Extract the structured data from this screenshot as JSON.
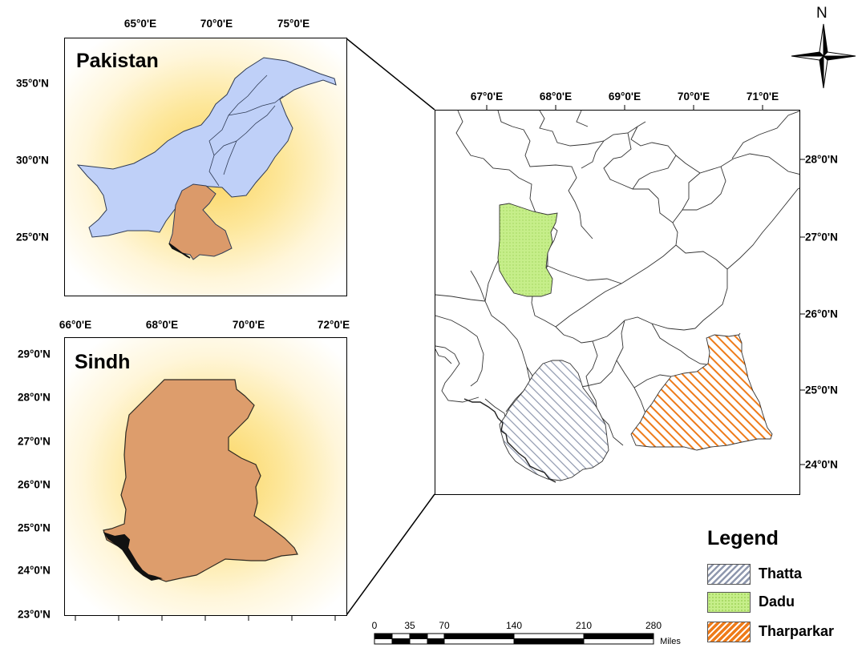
{
  "pakistan_panel": {
    "title": "Pakistan",
    "lon_ticks": [
      "65°0'E",
      "70°0'E",
      "75°0'E"
    ],
    "lat_ticks": [
      "35°0'N",
      "30°0'N",
      "25°0'N"
    ],
    "colors": {
      "country": "#bfd0f8",
      "sindh": "#db9a6a"
    }
  },
  "sindh_panel": {
    "title": "Sindh",
    "lon_ticks": [
      "66°0'E",
      "68°0'E",
      "70°0'E",
      "72°0'E"
    ],
    "lat_ticks": [
      "29°0'N",
      "28°0'N",
      "27°0'N",
      "26°0'N",
      "25°0'N",
      "24°0'N",
      "23°0'N"
    ],
    "colors": {
      "province": "#dd9d6c"
    }
  },
  "main_map": {
    "lon_ticks": [
      "67°0'E",
      "68°0'E",
      "69°0'E",
      "70°0'E",
      "71°0'E"
    ],
    "lat_ticks": [
      "28°0'N",
      "27°0'N",
      "26°0'N",
      "25°0'N",
      "24°0'N"
    ]
  },
  "legend": {
    "title": "Legend",
    "items": [
      {
        "label": "Thatta",
        "pattern": "hatch-gray",
        "color": "#9aa3b8"
      },
      {
        "label": "Dadu",
        "pattern": "dots-green",
        "color": "#c2ec85"
      },
      {
        "label": "Tharparkar",
        "pattern": "hatch-orange",
        "color": "#f07d1e"
      }
    ]
  },
  "scale_bar": {
    "labels": [
      "0",
      "35",
      "70",
      "140",
      "210",
      "280"
    ],
    "unit": "Miles"
  },
  "north_arrow": {
    "label": "N"
  }
}
